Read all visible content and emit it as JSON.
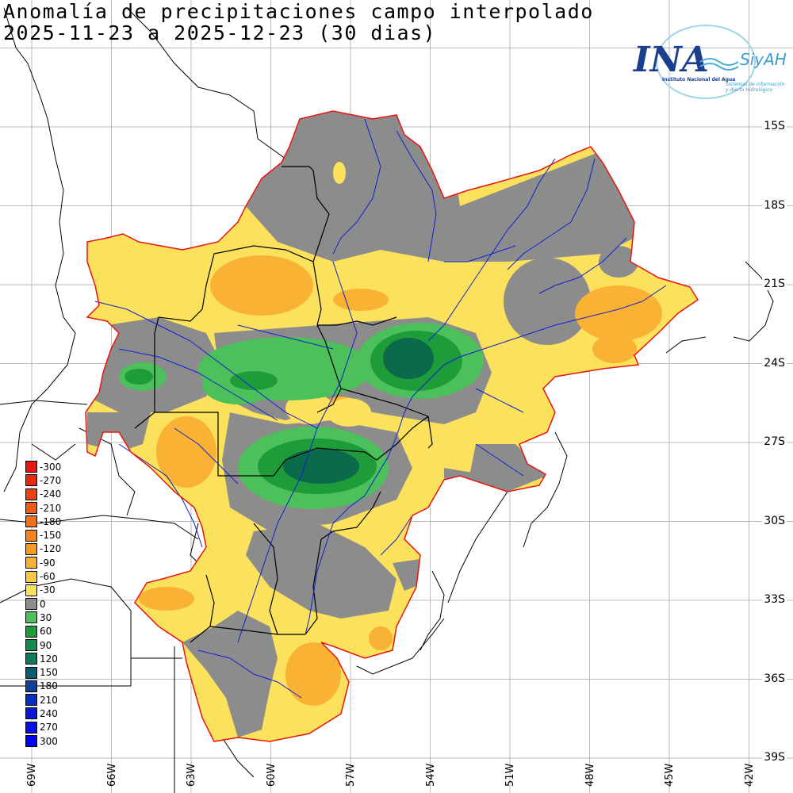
{
  "title_line1": "Anomalía de precipitaciones campo interpolado",
  "title_line2": "2025-11-23 a 2025-12-23 (30 dias)",
  "logo": {
    "main": "INA",
    "siyah": "SiyAH",
    "line1": "Instituto Nacional del Agua",
    "line2": "Sistemas de información",
    "line3": "y Alerta Hidrológico"
  },
  "lat_labels": [
    "15S",
    "18S",
    "21S",
    "24S",
    "27S",
    "30S",
    "33S",
    "36S",
    "39S"
  ],
  "lon_labels": [
    "69W",
    "66W",
    "63W",
    "60W",
    "57W",
    "54W",
    "51W",
    "48W",
    "45W",
    "42W"
  ],
  "legend": {
    "labels": [
      "-300",
      "-270",
      "-240",
      "-210",
      "-180",
      "-150",
      "-120",
      "-90",
      "-60",
      "-30",
      "0",
      "30",
      "60",
      "90",
      "120",
      "150",
      "180",
      "210",
      "240",
      "270",
      "300"
    ],
    "colors": [
      "#e8150f",
      "#e82a10",
      "#ec4212",
      "#ef5a14",
      "#f27016",
      "#f5851a",
      "#f79a22",
      "#f9b233",
      "#fbc944",
      "#fce15c",
      "#8c8c8c",
      "#4cc05a",
      "#1f9c3a",
      "#138a4e",
      "#0e7a5c",
      "#0a5a70",
      "#0e3f9a",
      "#0a2ec0",
      "#0818d8",
      "#0610e8",
      "#0000ff"
    ]
  },
  "colors": {
    "dry": "#fce15c",
    "drier": "#f9b233",
    "normal": "#8c8c8c",
    "wet": "#4cc05a",
    "wetter": "#1f9c3a",
    "wettest": "#0a6a4a",
    "border": "#e8150f",
    "rivers": "#1020d0"
  }
}
